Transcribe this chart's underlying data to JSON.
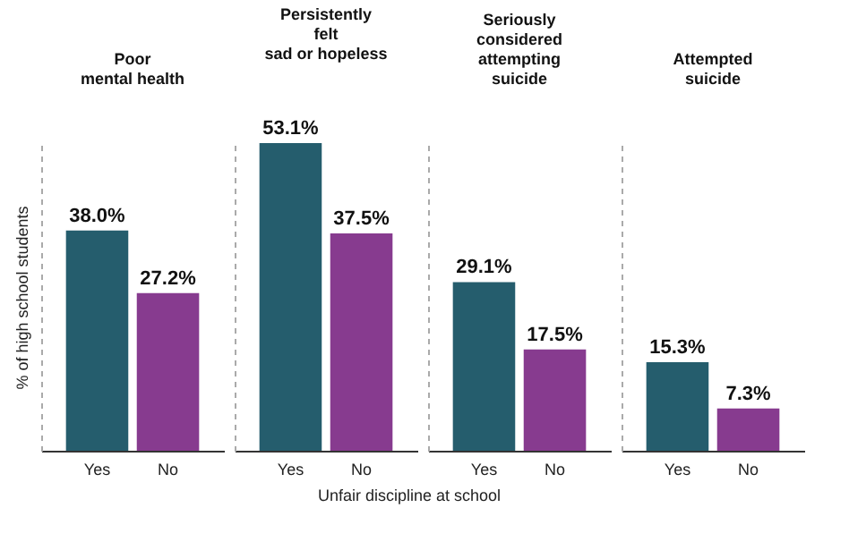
{
  "chart_data": [
    {
      "type": "bar",
      "title": "Poor\nmental health",
      "ylabel": "% of high school students",
      "xlabel": "Unfair discipline at school",
      "categories": [
        "Yes",
        "No"
      ],
      "values": [
        38.0,
        27.2
      ],
      "colors": [
        "#255d6d",
        "#873b8f"
      ],
      "value_labels": [
        "38.0%",
        "27.2%"
      ]
    },
    {
      "type": "bar",
      "title": "Persistently\nfelt\nsad or hopeless",
      "categories": [
        "Yes",
        "No"
      ],
      "values": [
        53.1,
        37.5
      ],
      "colors": [
        "#255d6d",
        "#873b8f"
      ],
      "value_labels": [
        "53.1%",
        "37.5%"
      ]
    },
    {
      "type": "bar",
      "title": "Seriously\nconsidered\nattempting\nsuicide",
      "categories": [
        "Yes",
        "No"
      ],
      "values": [
        29.1,
        17.5
      ],
      "colors": [
        "#255d6d",
        "#873b8f"
      ],
      "value_labels": [
        "29.1%",
        "17.5%"
      ]
    },
    {
      "type": "bar",
      "title": "Attempted\nsuicide",
      "categories": [
        "Yes",
        "No"
      ],
      "values": [
        15.3,
        7.3
      ],
      "colors": [
        "#255d6d",
        "#873b8f"
      ],
      "value_labels": [
        "15.3%",
        "7.3%"
      ]
    }
  ]
}
